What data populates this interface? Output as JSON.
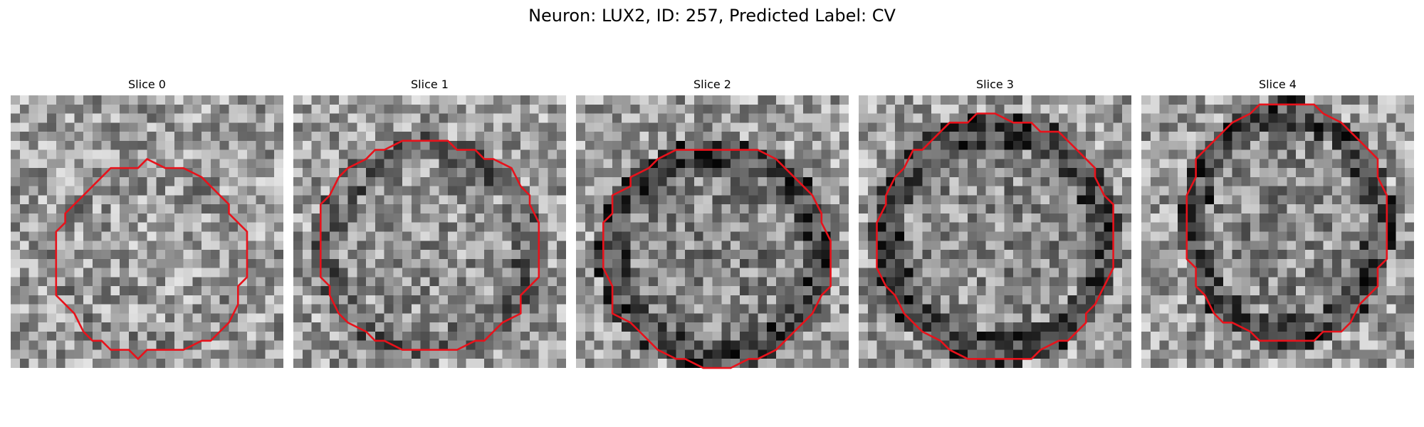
{
  "figure": {
    "title": "Neuron: LUX2, ID: 257, Predicted Label: CV"
  },
  "contour_color": "#e8121b",
  "panels": [
    {
      "label": "Slice 0",
      "image": "grayscale-microscopy-slice",
      "contour": "red-cell-outline"
    },
    {
      "label": "Slice 1",
      "image": "grayscale-microscopy-slice",
      "contour": "red-cell-outline"
    },
    {
      "label": "Slice 2",
      "image": "grayscale-microscopy-slice",
      "contour": "red-cell-outline"
    },
    {
      "label": "Slice 3",
      "image": "grayscale-microscopy-slice",
      "contour": "red-cell-outline"
    },
    {
      "label": "Slice 4",
      "image": "grayscale-microscopy-slice",
      "contour": "red-cell-outline"
    }
  ]
}
